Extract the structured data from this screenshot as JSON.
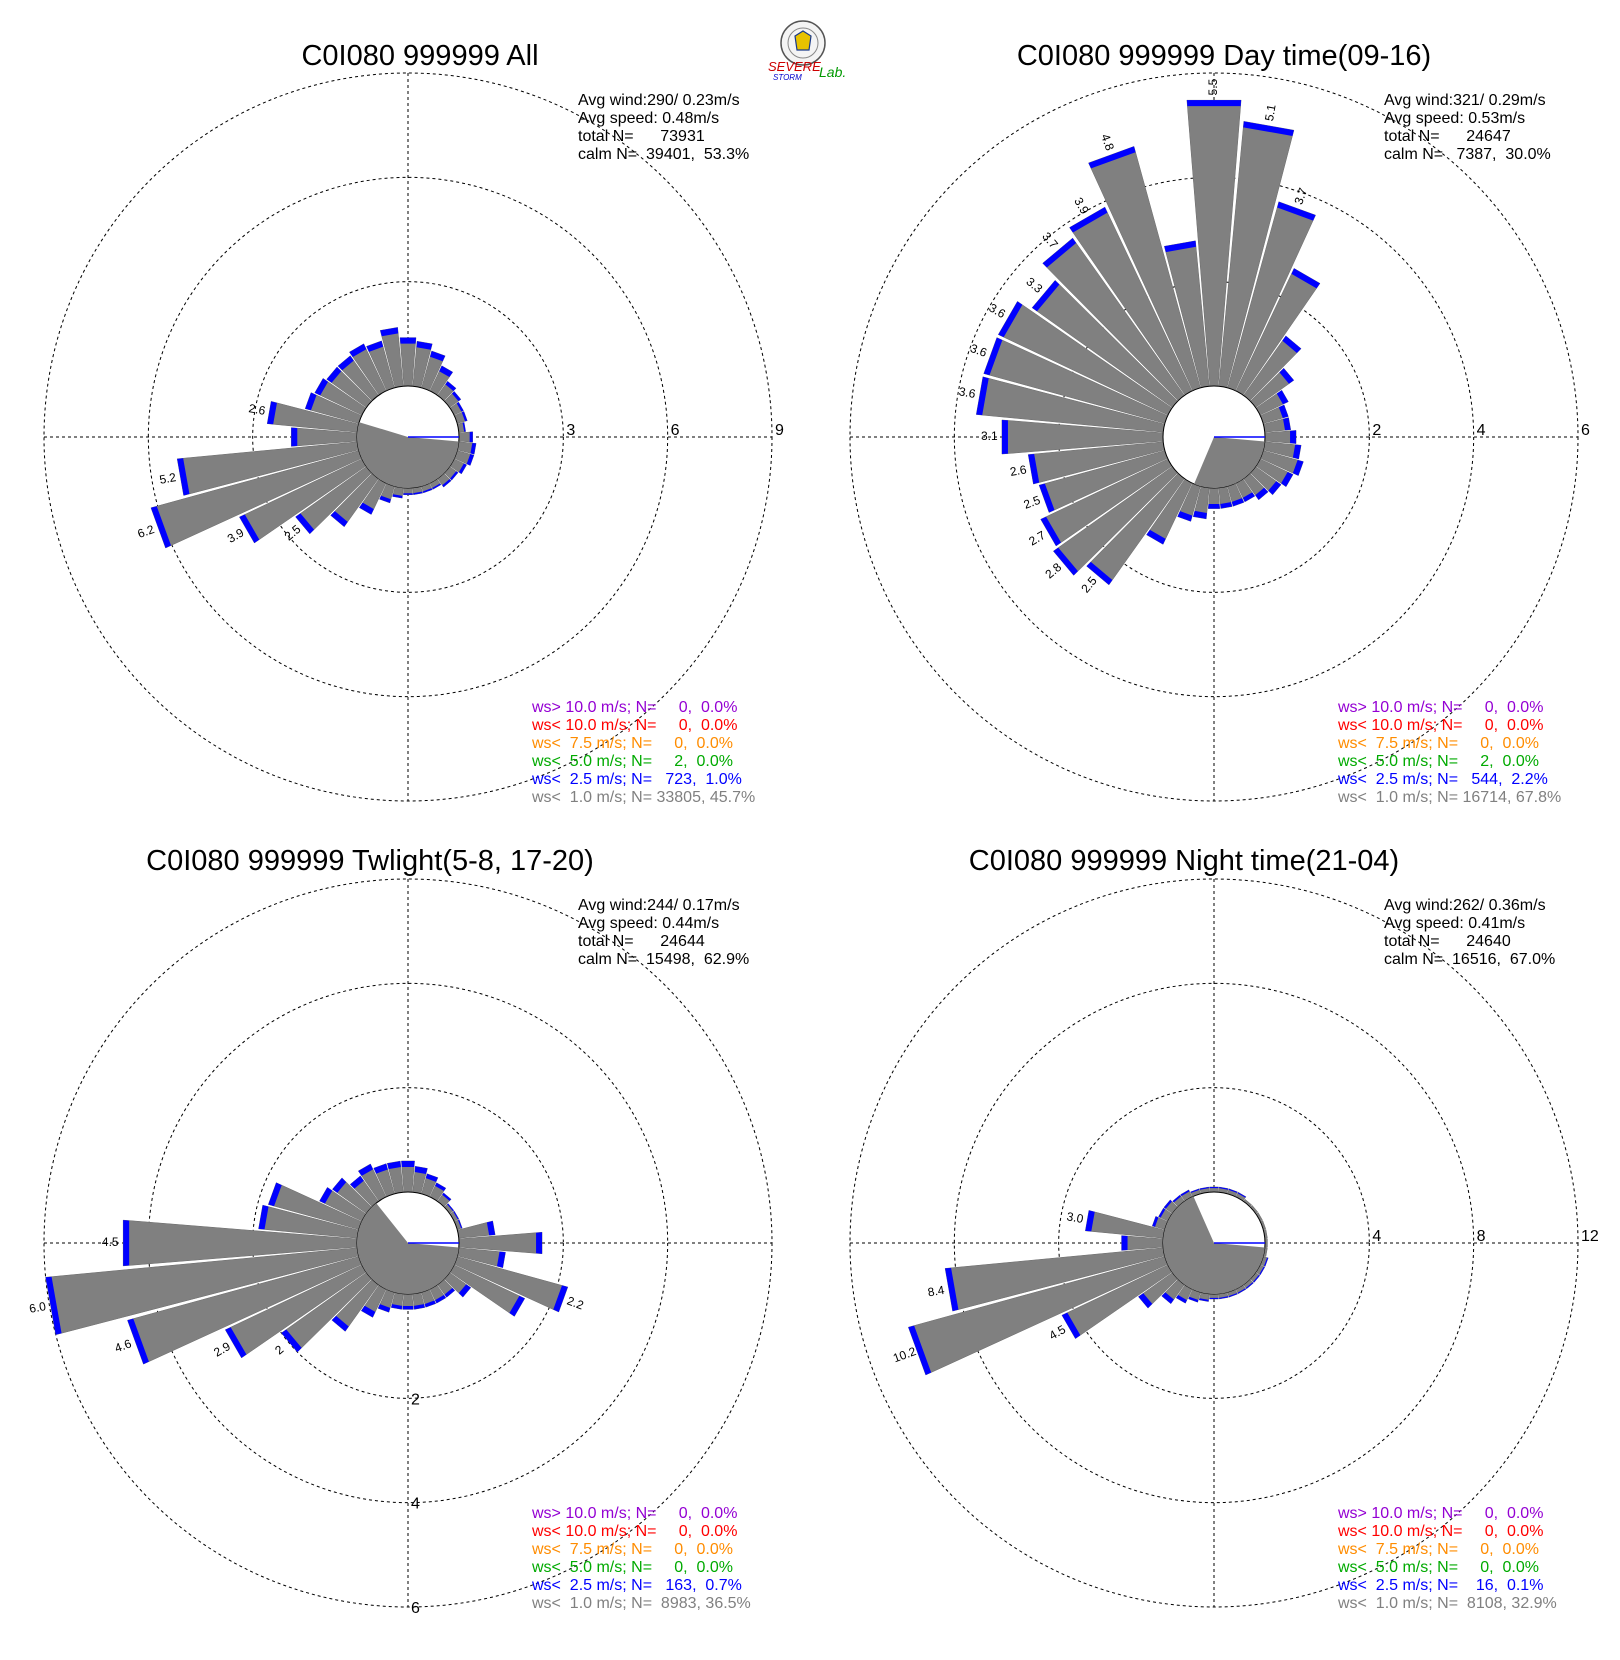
{
  "logo": {
    "text1": "SEVERE",
    "text2": "STORM",
    "text3": "Lab."
  },
  "legend_colors": [
    "#9400d3",
    "#ff0000",
    "#ff8c00",
    "#00aa00",
    "#0000ff",
    "#808080"
  ],
  "chart_data": [
    {
      "type": "wind-rose",
      "title": "C0I080 999999 All",
      "stats": {
        "avg_wind": "Avg wind:290/ 0.23m/s",
        "avg_speed": "Avg speed: 0.48m/s",
        "total_n": "total N=      73931",
        "calm_n": "calm N=  39401,  53.3%"
      },
      "rings": [
        3,
        6,
        9
      ],
      "ring_label_axis": "east",
      "bars": [
        {
          "dir": 0,
          "value": 1.4
        },
        {
          "dir": 10,
          "value": 1.3
        },
        {
          "dir": 20,
          "value": 1.1
        },
        {
          "dir": 30,
          "value": 0.8
        },
        {
          "dir": 40,
          "value": 0.5
        },
        {
          "dir": 50,
          "value": 0.4
        },
        {
          "dir": 60,
          "value": 0.3
        },
        {
          "dir": 70,
          "value": 0.3
        },
        {
          "dir": 80,
          "value": 0.2
        },
        {
          "dir": 90,
          "value": 0.4
        },
        {
          "dir": 100,
          "value": 0.5
        },
        {
          "dir": 110,
          "value": 0.5
        },
        {
          "dir": 120,
          "value": 0.4
        },
        {
          "dir": 130,
          "value": 0.3
        },
        {
          "dir": 140,
          "value": 0.3
        },
        {
          "dir": 150,
          "value": 0.2
        },
        {
          "dir": 160,
          "value": 0.2
        },
        {
          "dir": 170,
          "value": 0.2
        },
        {
          "dir": 180,
          "value": 0.2
        },
        {
          "dir": 190,
          "value": 0.3
        },
        {
          "dir": 200,
          "value": 0.5
        },
        {
          "dir": 210,
          "value": 1.0
        },
        {
          "dir": 220,
          "value": 1.7
        },
        {
          "dir": 230,
          "value": 2.5,
          "label": "2.5"
        },
        {
          "dir": 240,
          "value": 3.9,
          "label": "3.9"
        },
        {
          "dir": 250,
          "value": 6.2,
          "label": "6.2"
        },
        {
          "dir": 260,
          "value": 5.2,
          "label": "5.2"
        },
        {
          "dir": 270,
          "value": 1.9
        },
        {
          "dir": 280,
          "value": 2.6,
          "label": "2.6"
        },
        {
          "dir": 290,
          "value": 1.6
        },
        {
          "dir": 300,
          "value": 1.5
        },
        {
          "dir": 310,
          "value": 1.4
        },
        {
          "dir": 320,
          "value": 1.4
        },
        {
          "dir": 330,
          "value": 1.5
        },
        {
          "dir": 340,
          "value": 1.4
        },
        {
          "dir": 350,
          "value": 1.7
        }
      ],
      "legend": [
        "ws> 10.0 m/s; N=     0,  0.0%",
        "ws< 10.0 m/s; N=     0,  0.0%",
        "ws<  7.5 m/s; N=     0,  0.0%",
        "ws<  5.0 m/s; N=     2,  0.0%",
        "ws<  2.5 m/s; N=   723,  1.0%",
        "ws<  1.0 m/s; N= 33805, 45.7%"
      ]
    },
    {
      "type": "wind-rose",
      "title": "C0I080 999999 Day time(09-16)",
      "stats": {
        "avg_wind": "Avg wind:321/ 0.29m/s",
        "avg_speed": "Avg speed: 0.53m/s",
        "total_n": "total N=      24647",
        "calm_n": "calm N=   7387,  30.0%"
      },
      "rings": [
        2,
        4,
        6
      ],
      "ring_label_axis": "east",
      "bars": [
        {
          "dir": 0,
          "value": 5.5,
          "label": "5.5"
        },
        {
          "dir": 10,
          "value": 5.1,
          "label": "5.1"
        },
        {
          "dir": 20,
          "value": 3.7,
          "label": "3.7"
        },
        {
          "dir": 30,
          "value": 2.6
        },
        {
          "dir": 40,
          "value": 1.4
        },
        {
          "dir": 50,
          "value": 0.9
        },
        {
          "dir": 60,
          "value": 0.6
        },
        {
          "dir": 70,
          "value": 0.5
        },
        {
          "dir": 80,
          "value": 0.5
        },
        {
          "dir": 90,
          "value": 0.6
        },
        {
          "dir": 100,
          "value": 0.7
        },
        {
          "dir": 110,
          "value": 0.8
        },
        {
          "dir": 120,
          "value": 0.7
        },
        {
          "dir": 130,
          "value": 0.6
        },
        {
          "dir": 140,
          "value": 0.5
        },
        {
          "dir": 150,
          "value": 0.4
        },
        {
          "dir": 160,
          "value": 0.4
        },
        {
          "dir": 170,
          "value": 0.4
        },
        {
          "dir": 180,
          "value": 0.4
        },
        {
          "dir": 190,
          "value": 0.6
        },
        {
          "dir": 200,
          "value": 0.7
        },
        {
          "dir": 210,
          "value": 1.3
        },
        {
          "dir": 220,
          "value": 2.5,
          "label": "2.5"
        },
        {
          "dir": 230,
          "value": 2.8,
          "label": "2.8"
        },
        {
          "dir": 240,
          "value": 2.7,
          "label": "2.7"
        },
        {
          "dir": 250,
          "value": 2.5,
          "label": "2.5"
        },
        {
          "dir": 260,
          "value": 2.6,
          "label": "2.6"
        },
        {
          "dir": 270,
          "value": 3.1,
          "label": "3.1"
        },
        {
          "dir": 280,
          "value": 3.6,
          "label": "3.6"
        },
        {
          "dir": 290,
          "value": 3.6,
          "label": "3.6"
        },
        {
          "dir": 300,
          "value": 3.6,
          "label": "3.6"
        },
        {
          "dir": 310,
          "value": 3.3,
          "label": "3.3"
        },
        {
          "dir": 320,
          "value": 3.7,
          "label": "3.7"
        },
        {
          "dir": 330,
          "value": 3.9,
          "label": "3.9"
        },
        {
          "dir": 340,
          "value": 4.8,
          "label": "4.8"
        },
        {
          "dir": 350,
          "value": 2.8
        }
      ],
      "legend": [
        "ws> 10.0 m/s; N=     0,  0.0%",
        "ws< 10.0 m/s; N=     0,  0.0%",
        "ws<  7.5 m/s; N=     0,  0.0%",
        "ws<  5.0 m/s; N=     2,  0.0%",
        "ws<  2.5 m/s; N=   544,  2.2%",
        "ws<  1.0 m/s; N= 16714, 67.8%"
      ]
    },
    {
      "type": "wind-rose",
      "title": "C0I080 999999 Twlight(5-8, 17-20)",
      "stats": {
        "avg_wind": "Avg wind:244/ 0.17m/s",
        "avg_speed": "Avg speed: 0.44m/s",
        "total_n": "total N=      24644",
        "calm_n": "calm N=  15498,  62.9%"
      },
      "rings": [
        2,
        4,
        6
      ],
      "ring_label_axis": "south",
      "bars": [
        {
          "dir": 0,
          "value": 0.6
        },
        {
          "dir": 10,
          "value": 0.5
        },
        {
          "dir": 20,
          "value": 0.4
        },
        {
          "dir": 30,
          "value": 0.3
        },
        {
          "dir": 40,
          "value": 0.2
        },
        {
          "dir": 50,
          "value": 0.1
        },
        {
          "dir": 60,
          "value": 0.1
        },
        {
          "dir": 70,
          "value": 0.1
        },
        {
          "dir": 80,
          "value": 0.7
        },
        {
          "dir": 90,
          "value": 1.6
        },
        {
          "dir": 100,
          "value": 0.9
        },
        {
          "dir": 110,
          "value": 2.2,
          "label": "2.2"
        },
        {
          "dir": 120,
          "value": 1.5
        },
        {
          "dir": 130,
          "value": 0.5
        },
        {
          "dir": 140,
          "value": 0.3
        },
        {
          "dir": 150,
          "value": 0.3
        },
        {
          "dir": 160,
          "value": 0.3
        },
        {
          "dir": 170,
          "value": 0.3
        },
        {
          "dir": 180,
          "value": 0.3
        },
        {
          "dir": 190,
          "value": 0.3
        },
        {
          "dir": 200,
          "value": 0.4
        },
        {
          "dir": 210,
          "value": 0.6
        },
        {
          "dir": 220,
          "value": 1.1
        },
        {
          "dir": 230,
          "value": 2.0,
          "label": "2"
        },
        {
          "dir": 240,
          "value": 2.9,
          "label": "2.9"
        },
        {
          "dir": 250,
          "value": 4.6,
          "label": "4.6"
        },
        {
          "dir": 260,
          "value": 6.0,
          "label": "6.0"
        },
        {
          "dir": 270,
          "value": 4.5,
          "label": "4.5"
        },
        {
          "dir": 280,
          "value": 1.9
        },
        {
          "dir": 290,
          "value": 1.8
        },
        {
          "dir": 300,
          "value": 0.9
        },
        {
          "dir": 310,
          "value": 0.8
        },
        {
          "dir": 320,
          "value": 0.6
        },
        {
          "dir": 330,
          "value": 0.7
        },
        {
          "dir": 340,
          "value": 0.6
        },
        {
          "dir": 350,
          "value": 0.6
        }
      ],
      "legend": [
        "ws> 10.0 m/s; N=     0,  0.0%",
        "ws< 10.0 m/s; N=     0,  0.0%",
        "ws<  7.5 m/s; N=     0,  0.0%",
        "ws<  5.0 m/s; N=     0,  0.0%",
        "ws<  2.5 m/s; N=   163,  0.7%",
        "ws<  1.0 m/s; N=  8983, 36.5%"
      ]
    },
    {
      "type": "wind-rose",
      "title": "C0I080 999999 Night time(21-04)",
      "stats": {
        "avg_wind": "Avg wind:262/ 0.36m/s",
        "avg_speed": "Avg speed: 0.41m/s",
        "total_n": "total N=      24640",
        "calm_n": "calm N=  16516,  67.0%"
      },
      "rings": [
        4,
        8,
        12
      ],
      "ring_label_axis": "east",
      "bars": [
        {
          "dir": 0,
          "value": 0.2
        },
        {
          "dir": 10,
          "value": 0.2
        },
        {
          "dir": 20,
          "value": 0.2
        },
        {
          "dir": 30,
          "value": 0.2
        },
        {
          "dir": 40,
          "value": 0.1
        },
        {
          "dir": 50,
          "value": 0.1
        },
        {
          "dir": 60,
          "value": 0.1
        },
        {
          "dir": 70,
          "value": 0.1
        },
        {
          "dir": 80,
          "value": 0.1
        },
        {
          "dir": 90,
          "value": 0.1
        },
        {
          "dir": 100,
          "value": 0.1
        },
        {
          "dir": 110,
          "value": 0.2
        },
        {
          "dir": 120,
          "value": 0.2
        },
        {
          "dir": 130,
          "value": 0.2
        },
        {
          "dir": 140,
          "value": 0.2
        },
        {
          "dir": 150,
          "value": 0.2
        },
        {
          "dir": 160,
          "value": 0.2
        },
        {
          "dir": 170,
          "value": 0.2
        },
        {
          "dir": 180,
          "value": 0.2
        },
        {
          "dir": 190,
          "value": 0.3
        },
        {
          "dir": 200,
          "value": 0.4
        },
        {
          "dir": 210,
          "value": 0.6
        },
        {
          "dir": 220,
          "value": 0.9
        },
        {
          "dir": 230,
          "value": 1.6
        },
        {
          "dir": 240,
          "value": 4.5,
          "label": "4.5"
        },
        {
          "dir": 250,
          "value": 10.2,
          "label": "10.2"
        },
        {
          "dir": 260,
          "value": 8.4,
          "label": "8.4"
        },
        {
          "dir": 270,
          "value": 1.6
        },
        {
          "dir": 280,
          "value": 3.0,
          "label": "3.0"
        },
        {
          "dir": 290,
          "value": 0.5
        },
        {
          "dir": 300,
          "value": 0.4
        },
        {
          "dir": 310,
          "value": 0.4
        },
        {
          "dir": 320,
          "value": 0.3
        },
        {
          "dir": 330,
          "value": 0.3
        },
        {
          "dir": 340,
          "value": 0.2
        },
        {
          "dir": 350,
          "value": 0.2
        }
      ],
      "legend": [
        "ws> 10.0 m/s; N=     0,  0.0%",
        "ws< 10.0 m/s; N=     0,  0.0%",
        "ws<  7.5 m/s; N=     0,  0.0%",
        "ws<  5.0 m/s; N=     0,  0.0%",
        "ws<  2.5 m/s; N=    16,  0.1%",
        "ws<  1.0 m/s; N=  8108, 32.9%"
      ]
    }
  ]
}
